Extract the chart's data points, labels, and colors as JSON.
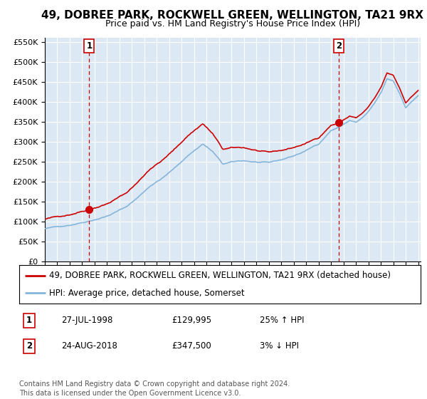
{
  "title": "49, DOBREE PARK, ROCKWELL GREEN, WELLINGTON, TA21 9RX",
  "subtitle": "Price paid vs. HM Land Registry's House Price Index (HPI)",
  "legend_line1": "49, DOBREE PARK, ROCKWELL GREEN, WELLINGTON, TA21 9RX (detached house)",
  "legend_line2": "HPI: Average price, detached house, Somerset",
  "footnote": "Contains HM Land Registry data © Crown copyright and database right 2024.\nThis data is licensed under the Open Government Licence v3.0.",
  "sale1_label": "1",
  "sale1_date": "27-JUL-1998",
  "sale1_price": 129995,
  "sale1_price_str": "£129,995",
  "sale1_hpi": "25% ↑ HPI",
  "sale2_label": "2",
  "sale2_date": "24-AUG-2018",
  "sale2_price": 347500,
  "sale2_price_str": "£347,500",
  "sale2_hpi": "3% ↓ HPI",
  "sale1_x": 1998.57,
  "sale2_x": 2018.64,
  "ylim_min": 0,
  "ylim_max": 560000,
  "yticks": [
    0,
    50000,
    100000,
    150000,
    200000,
    250000,
    300000,
    350000,
    400000,
    450000,
    500000,
    550000
  ],
  "xlim_min": 1995.0,
  "xlim_max": 2025.2,
  "plot_bg": "#dce9f5",
  "fig_bg": "#ffffff",
  "red_line_color": "#cc0000",
  "blue_line_color": "#85b5d9",
  "marker_color": "#cc0000",
  "vline_color": "#cc0000",
  "grid_color": "#ffffff",
  "box_color": "#cc0000",
  "title_fontsize": 11,
  "subtitle_fontsize": 9,
  "tick_fontsize": 8,
  "legend_fontsize": 8.5,
  "table_fontsize": 8.5,
  "footnote_fontsize": 7
}
